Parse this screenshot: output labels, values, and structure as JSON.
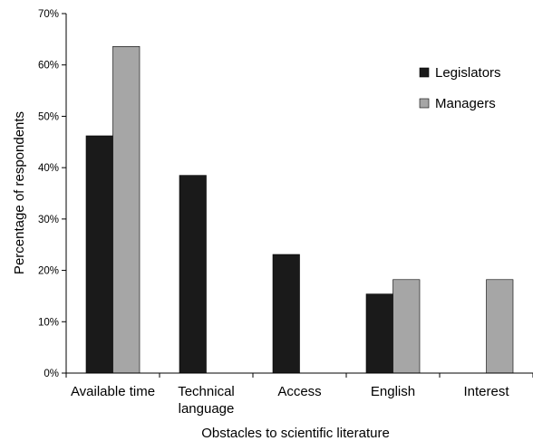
{
  "chart_data": {
    "type": "bar",
    "title": "",
    "xlabel": "Obstacles to scientific literature",
    "ylabel": "Percentage of respondents",
    "categories": [
      [
        "Available time"
      ],
      [
        "Technical",
        "language"
      ],
      [
        "Access"
      ],
      [
        "English"
      ],
      [
        "Interest"
      ]
    ],
    "series": [
      {
        "name": "Legislators",
        "color": "#1a1a1a",
        "values": [
          46.2,
          38.5,
          23.1,
          15.4,
          0
        ]
      },
      {
        "name": "Managers",
        "color": "#a6a6a6",
        "values": [
          63.6,
          0,
          0,
          18.2,
          18.2
        ]
      }
    ],
    "ylim": [
      0,
      70
    ],
    "yticks": [
      "0%",
      "10%",
      "20%",
      "30%",
      "40%",
      "50%",
      "60%",
      "70%"
    ],
    "legend_position": "top-right",
    "grid": false
  }
}
